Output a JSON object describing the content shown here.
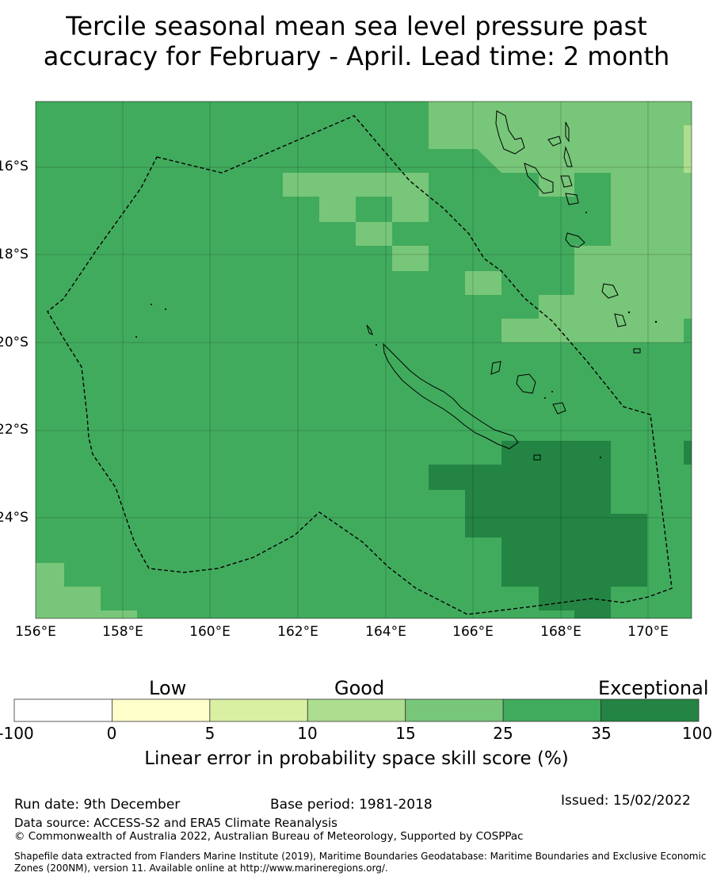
{
  "title": {
    "line1": "Tercile seasonal mean sea level pressure past",
    "line2": "accuracy for February - April. Lead time: 2 month"
  },
  "map": {
    "longitude_labels": [
      "156°E",
      "158°E",
      "160°E",
      "162°E",
      "164°E",
      "166°E",
      "168°E",
      "170°E"
    ],
    "latitude_labels": [
      "16°S",
      "18°S",
      "20°S",
      "22°S",
      "24°S"
    ],
    "lon_range": [
      156,
      171
    ],
    "lat_range": [
      -26.5,
      -14.5
    ],
    "gridlines": true,
    "boundary": "Exclusive Economic Zone (dashed)",
    "colors": {
      "cat_15_25": "#78c679",
      "cat_25_35": "#41ab5d",
      "cat_35_100": "#238443",
      "cat_10_15": "#addd8e",
      "coast": "#000000"
    },
    "cell_categories": {
      "background": "25 to 35",
      "light_patches": "15 to 25",
      "dark_patch": "35 to 100",
      "pale_patch": "10 to 15"
    }
  },
  "colorbar": {
    "groups": [
      "Low",
      "Good",
      "Exceptional"
    ],
    "ticks": [
      "-100",
      "0",
      "5",
      "10",
      "15",
      "25",
      "35",
      "100"
    ],
    "colors": [
      "#ffffff",
      "#ffffcc",
      "#d9f0a3",
      "#addd8e",
      "#78c679",
      "#41ab5d",
      "#238443"
    ],
    "label": "Linear error in probability space skill score (%)"
  },
  "footer": {
    "run_date": "Run date: 9th December",
    "base_period": "Base period: 1981-2018",
    "issued": "Issued: 15/02/2022",
    "data_source": "Data source: ACCESS-S2 and ERA5 Climate Reanalysis",
    "copyright": "© Commonwealth of Australia 2022, Australian Bureau of Meteorology, Supported by COSPPac",
    "shapefile": "Shapefile data extracted from Flanders Marine Institute (2019), Maritime Boundaries Geodatabase: Maritime Boundaries and Exclusive Economic Zones (200NM), version 11. Available online at http://www.marineregions.org/."
  }
}
